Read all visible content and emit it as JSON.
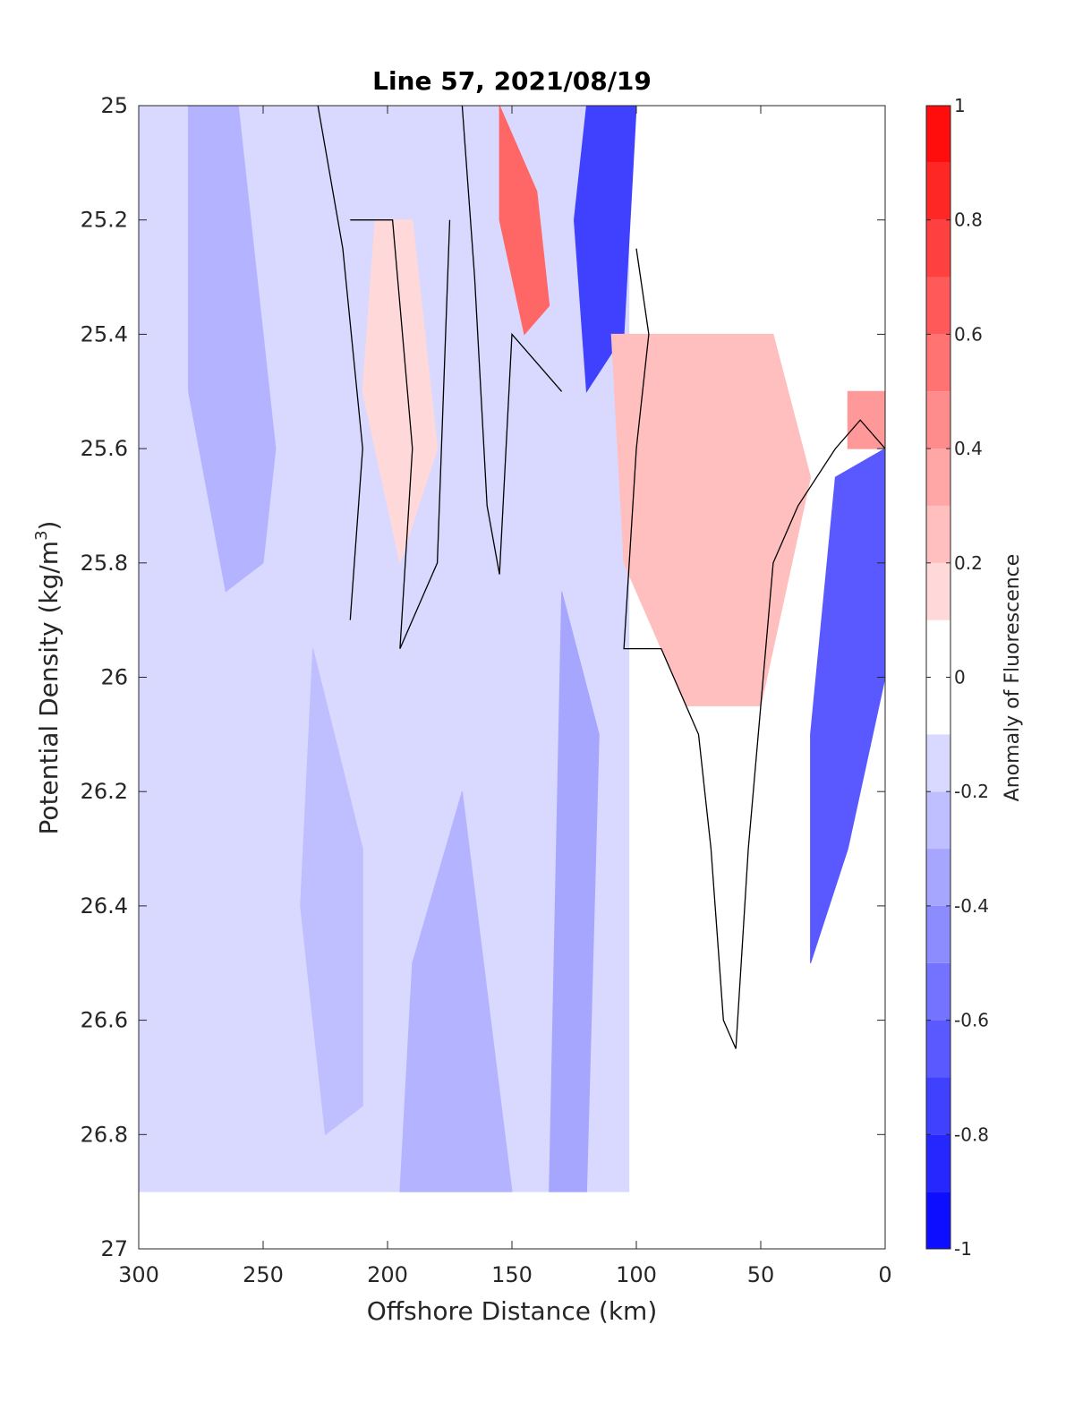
{
  "chart_data": {
    "type": "heatmap",
    "subtype": "filled-contour",
    "title": "Line 57, 2021/08/19",
    "xlabel": "Offshore Distance (km)",
    "ylabel_main": "Potential Density (kg/m",
    "ylabel_sup": "3",
    "ylabel_end": ")",
    "colorbar_label": "Anomaly of Fluorescence",
    "x_direction": "reversed",
    "y_direction": "reversed",
    "xlim": [
      300,
      0
    ],
    "ylim": [
      25,
      27
    ],
    "xticks": [
      300,
      250,
      200,
      150,
      100,
      50,
      0
    ],
    "xtick_labels": [
      "300",
      "250",
      "200",
      "150",
      "100",
      "50",
      "0"
    ],
    "yticks": [
      25,
      25.2,
      25.4,
      25.6,
      25.8,
      26,
      26.2,
      26.4,
      26.6,
      26.8,
      27
    ],
    "ytick_labels": [
      "25",
      "25.2",
      "25.4",
      "25.6",
      "25.8",
      "26",
      "26.2",
      "26.4",
      "26.6",
      "26.8",
      "27"
    ],
    "clim": [
      -1,
      1
    ],
    "color_levels": [
      -1,
      -0.9,
      -0.8,
      -0.7,
      -0.6,
      -0.5,
      -0.4,
      -0.3,
      -0.2,
      -0.1,
      0.1,
      0.2,
      0.3,
      0.4,
      0.5,
      0.6,
      0.7,
      0.8,
      0.9,
      1
    ],
    "colorbar_ticks": [
      1,
      0.8,
      0.6,
      0.4,
      0.2,
      0,
      -0.2,
      -0.4,
      -0.6,
      -0.8,
      -1
    ],
    "colorbar_tick_labels": [
      "1",
      "0.8",
      "0.6",
      "0.4",
      "0.2",
      "0",
      "-0.2",
      "-0.4",
      "-0.6",
      "-0.8",
      "-1"
    ],
    "colormap_endpoints": {
      "negative": "#0000ff",
      "zero": "#ffffff",
      "positive": "#ff0000"
    },
    "zero_contour_color": "#000000",
    "regions": [
      {
        "name": "offshore-negative-background",
        "value": -0.15,
        "points": [
          [
            300,
            25
          ],
          [
            103,
            25
          ],
          [
            103,
            26.9
          ],
          [
            300,
            26.9
          ]
        ]
      },
      {
        "name": "negative-core-270km",
        "value": -0.3,
        "points": [
          [
            280,
            25
          ],
          [
            260,
            25
          ],
          [
            245,
            25.6
          ],
          [
            250,
            25.8
          ],
          [
            265,
            25.85
          ],
          [
            280,
            25.5
          ]
        ]
      },
      {
        "name": "positive-core-195km",
        "value": 0.15,
        "points": [
          [
            205,
            25.2
          ],
          [
            190,
            25.2
          ],
          [
            180,
            25.6
          ],
          [
            195,
            25.8
          ],
          [
            210,
            25.5
          ]
        ]
      },
      {
        "name": "positive-core-145km",
        "value": 0.6,
        "points": [
          [
            155,
            25
          ],
          [
            140,
            25.15
          ],
          [
            135,
            25.35
          ],
          [
            145,
            25.4
          ],
          [
            155,
            25.2
          ]
        ]
      },
      {
        "name": "negative-core-110km",
        "value": -0.75,
        "points": [
          [
            120,
            25
          ],
          [
            100,
            25
          ],
          [
            105,
            25.4
          ],
          [
            120,
            25.5
          ],
          [
            125,
            25.2
          ]
        ]
      },
      {
        "name": "positive-shelf-region",
        "value": 0.25,
        "points": [
          [
            110,
            25.4
          ],
          [
            45,
            25.4
          ],
          [
            30,
            25.65
          ],
          [
            40,
            25.85
          ],
          [
            50,
            26.05
          ],
          [
            80,
            26.05
          ],
          [
            105,
            25.8
          ]
        ]
      },
      {
        "name": "positive-core-15km",
        "value": 0.4,
        "points": [
          [
            15,
            25.5
          ],
          [
            0,
            25.5
          ],
          [
            0,
            25.6
          ],
          [
            15,
            25.6
          ]
        ]
      },
      {
        "name": "negative-nearshore-core",
        "value": -0.65,
        "points": [
          [
            20,
            25.65
          ],
          [
            0,
            25.6
          ],
          [
            0,
            26.0
          ],
          [
            15,
            26.3
          ],
          [
            30,
            26.5
          ],
          [
            30,
            26.1
          ]
        ]
      },
      {
        "name": "negative-core-230km",
        "value": -0.25,
        "points": [
          [
            230,
            25.95
          ],
          [
            210,
            26.3
          ],
          [
            210,
            26.75
          ],
          [
            225,
            26.8
          ],
          [
            235,
            26.4
          ]
        ]
      },
      {
        "name": "negative-core-180km",
        "value": -0.3,
        "points": [
          [
            170,
            26.2
          ],
          [
            150,
            26.9
          ],
          [
            195,
            26.9
          ],
          [
            190,
            26.5
          ]
        ]
      },
      {
        "name": "negative-core-125km",
        "value": -0.35,
        "points": [
          [
            130,
            25.85
          ],
          [
            115,
            26.1
          ],
          [
            120,
            26.9
          ],
          [
            135,
            26.9
          ]
        ]
      }
    ],
    "zero_contours": [
      {
        "name": "zero-contour-225km",
        "points": [
          [
            228,
            25
          ],
          [
            218,
            25.25
          ],
          [
            210,
            25.6
          ],
          [
            215,
            25.9
          ]
        ]
      },
      {
        "name": "zero-contour-200km",
        "points": [
          [
            215,
            25.2
          ],
          [
            198,
            25.2
          ],
          [
            190,
            25.6
          ],
          [
            195,
            25.95
          ],
          [
            180,
            25.8
          ],
          [
            175,
            25.2
          ]
        ]
      },
      {
        "name": "zero-contour-160km",
        "points": [
          [
            170,
            25
          ],
          [
            165,
            25.3
          ],
          [
            160,
            25.7
          ],
          [
            155,
            25.82
          ],
          [
            150,
            25.4
          ],
          [
            140,
            25.45
          ],
          [
            130,
            25.5
          ]
        ]
      },
      {
        "name": "zero-contour-105km",
        "points": [
          [
            100,
            25.25
          ],
          [
            95,
            25.4
          ],
          [
            100,
            25.6
          ],
          [
            105,
            25.95
          ],
          [
            90,
            25.95
          ],
          [
            85,
            26.0
          ],
          [
            75,
            26.1
          ],
          [
            70,
            26.3
          ],
          [
            65,
            26.6
          ],
          [
            60,
            26.65
          ],
          [
            55,
            26.3
          ],
          [
            45,
            25.8
          ],
          [
            35,
            25.7
          ],
          [
            20,
            25.6
          ],
          [
            10,
            25.55
          ],
          [
            0,
            25.6
          ]
        ]
      }
    ]
  }
}
